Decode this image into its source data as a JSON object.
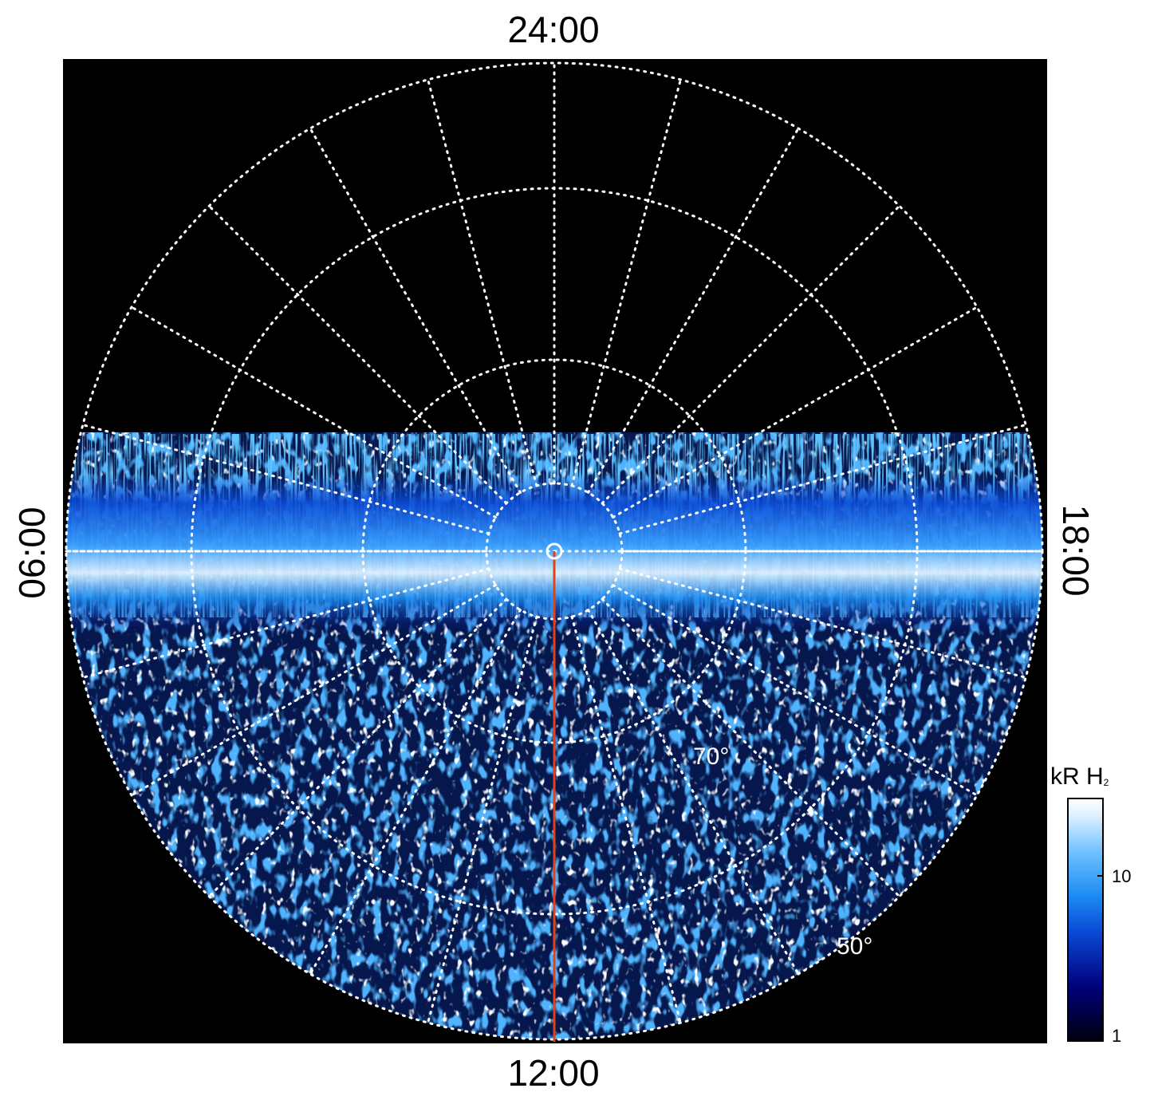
{
  "labels": {
    "top": "24:00",
    "bottom": "12:00",
    "left": "06:00",
    "right": "18:00"
  },
  "lat_labels": {
    "lat70": "70°",
    "lat50": "50°"
  },
  "colorbar": {
    "title_main": "kR H",
    "title_sub": "2",
    "tick_10": "10",
    "tick_1": "1"
  },
  "colors": {
    "background": "#000000",
    "grid": "#ffffff",
    "meridian_line": "#e0401a",
    "emission_low": "#00007a",
    "emission_mid": "#1c8cf2",
    "emission_high": "#ffffff"
  }
}
